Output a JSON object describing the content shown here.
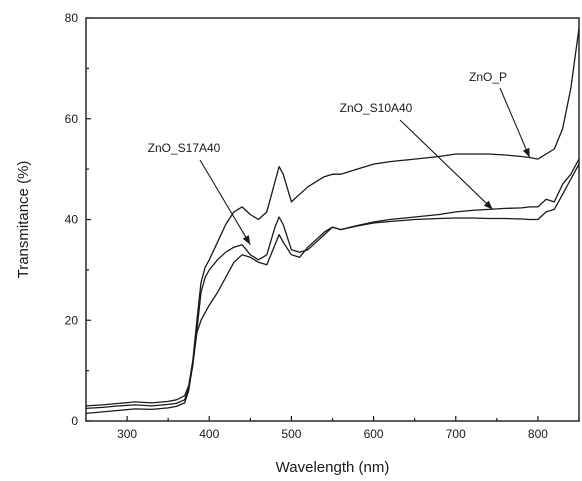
{
  "chart_data": {
    "type": "line",
    "xlabel": "Wavelength (nm)",
    "ylabel": "Transmitance (%)",
    "xlim": [
      250,
      850
    ],
    "ylim": [
      0,
      80
    ],
    "xticks": [
      300,
      400,
      500,
      600,
      700,
      800
    ],
    "yticks": [
      0,
      20,
      40,
      60,
      80
    ],
    "grid": false,
    "legend": "none",
    "series": [
      {
        "name": "ZnO_P",
        "x": [
          250,
          270,
          290,
          310,
          330,
          350,
          360,
          370,
          375,
          380,
          385,
          390,
          395,
          400,
          410,
          420,
          430,
          440,
          450,
          460,
          470,
          480,
          485,
          490,
          500,
          510,
          520,
          530,
          540,
          550,
          560,
          580,
          600,
          620,
          650,
          680,
          700,
          720,
          740,
          760,
          780,
          790,
          800,
          810,
          820,
          830,
          840,
          850
        ],
        "y": [
          3.0,
          3.2,
          3.5,
          3.8,
          3.6,
          3.9,
          4.2,
          5.0,
          7.0,
          12.0,
          20.0,
          27.5,
          30.5,
          32.0,
          35.5,
          39.0,
          41.5,
          42.5,
          41.0,
          40.0,
          41.5,
          47.5,
          50.5,
          49.0,
          43.5,
          45.0,
          46.5,
          47.5,
          48.5,
          49.0,
          49.0,
          50.0,
          51.0,
          51.5,
          52.0,
          52.5,
          53.0,
          53.0,
          53.0,
          52.8,
          52.5,
          52.3,
          52.0,
          53.0,
          54.0,
          58.0,
          66.0,
          78.0
        ]
      },
      {
        "name": "ZnO_S10A40",
        "x": [
          250,
          270,
          290,
          310,
          330,
          350,
          360,
          370,
          375,
          380,
          385,
          390,
          395,
          400,
          410,
          420,
          430,
          440,
          450,
          460,
          470,
          480,
          485,
          490,
          500,
          510,
          520,
          530,
          540,
          550,
          560,
          580,
          600,
          620,
          650,
          680,
          700,
          720,
          740,
          760,
          780,
          790,
          800,
          810,
          820,
          830,
          840,
          850
        ],
        "y": [
          2.5,
          2.7,
          3.0,
          3.2,
          3.0,
          3.3,
          3.5,
          4.2,
          6.5,
          11.0,
          18.0,
          25.5,
          28.5,
          30.0,
          32.0,
          33.5,
          34.5,
          35.0,
          33.0,
          32.0,
          33.0,
          38.5,
          40.5,
          39.0,
          34.0,
          33.5,
          34.0,
          35.5,
          37.0,
          38.5,
          38.0,
          38.8,
          39.5,
          40.0,
          40.5,
          41.0,
          41.5,
          41.8,
          42.0,
          42.2,
          42.3,
          42.5,
          42.5,
          44.0,
          43.5,
          47.0,
          49.0,
          52.0
        ]
      },
      {
        "name": "ZnO_S17A40",
        "x": [
          250,
          270,
          290,
          310,
          330,
          350,
          360,
          370,
          375,
          380,
          385,
          390,
          395,
          400,
          410,
          420,
          430,
          440,
          450,
          460,
          470,
          480,
          485,
          490,
          500,
          510,
          520,
          530,
          540,
          550,
          560,
          580,
          600,
          620,
          650,
          680,
          700,
          720,
          740,
          760,
          780,
          790,
          800,
          810,
          820,
          830,
          840,
          850
        ],
        "y": [
          1.5,
          1.8,
          2.1,
          2.4,
          2.3,
          2.6,
          2.9,
          3.6,
          6.0,
          11.5,
          17.5,
          20.0,
          21.5,
          23.0,
          25.5,
          28.5,
          31.5,
          33.0,
          32.5,
          31.5,
          31.0,
          35.0,
          37.0,
          35.5,
          33.0,
          32.5,
          34.5,
          36.0,
          37.5,
          38.5,
          38.0,
          38.7,
          39.3,
          39.6,
          40.0,
          40.2,
          40.3,
          40.3,
          40.2,
          40.2,
          40.1,
          40.0,
          40.0,
          41.5,
          42.0,
          45.0,
          48.0,
          51.0
        ]
      }
    ],
    "annotations": [
      {
        "text": "ZnO_P",
        "series": "ZnO_P",
        "pointer_x": 790,
        "pointer_y": 52.3
      },
      {
        "text": "ZnO_S10A40",
        "series": "ZnO_S10A40",
        "pointer_x": 745,
        "pointer_y": 42.0
      },
      {
        "text": "ZnO_S17A40",
        "series": "ZnO_S17A40",
        "pointer_x": 450,
        "pointer_y": 35.0
      }
    ]
  }
}
